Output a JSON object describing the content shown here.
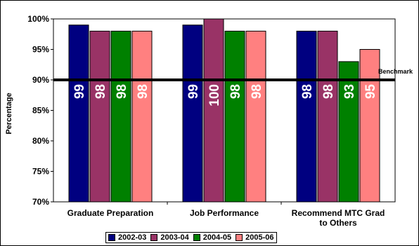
{
  "chart_data": {
    "type": "bar",
    "ylabel": "Percentage",
    "ylim": [
      70,
      100
    ],
    "yticks": [
      "70%",
      "75%",
      "80%",
      "85%",
      "90%",
      "95%",
      "100%"
    ],
    "ytick_values": [
      70,
      75,
      80,
      85,
      90,
      95,
      100
    ],
    "categories": [
      [
        "Graduate Preparation"
      ],
      [
        "Job Performance"
      ],
      [
        "Recommend MTC Grad",
        "to Others"
      ]
    ],
    "series": [
      {
        "name": "2002-03",
        "color": "#000080",
        "values": [
          99,
          99,
          98
        ]
      },
      {
        "name": "2003-04",
        "color": "#993366",
        "values": [
          98,
          100,
          98
        ]
      },
      {
        "name": "2004-05",
        "color": "#008000",
        "values": [
          98,
          98,
          93
        ]
      },
      {
        "name": "2005-06",
        "color": "#FF8080",
        "values": [
          98,
          98,
          95
        ]
      }
    ],
    "benchmark": {
      "label": "Benchmark",
      "value": 90
    },
    "grid": false,
    "legend": "bottom"
  }
}
